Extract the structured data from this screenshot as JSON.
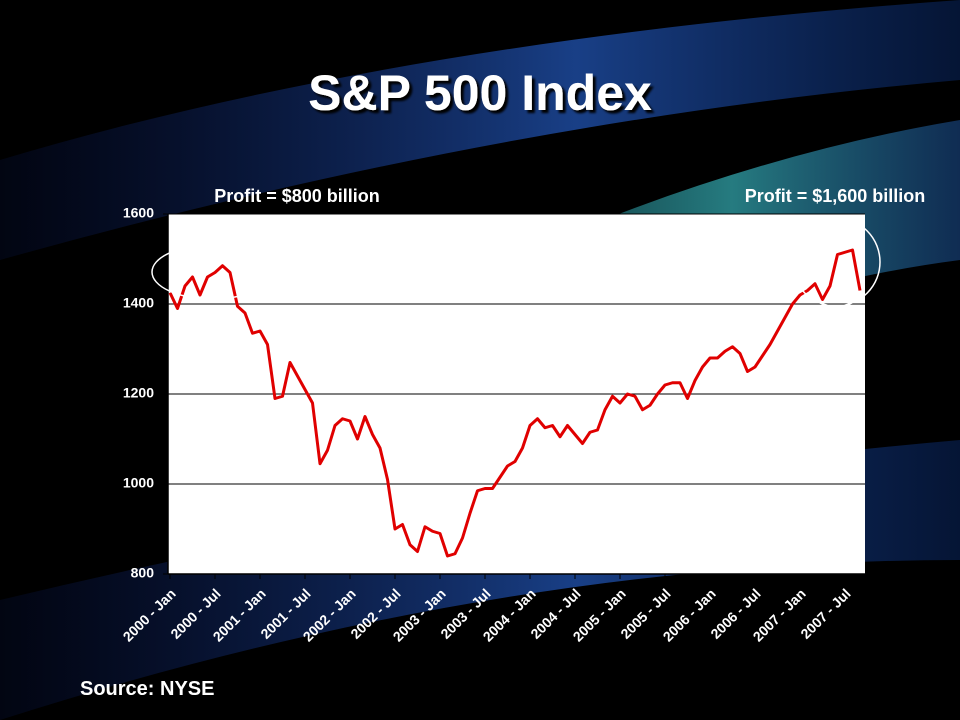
{
  "chart_data": {
    "type": "line",
    "title": "S&P 500 Index",
    "annotations": [
      "Profit = $800 billion",
      "Profit = $1,600 billion"
    ],
    "source": "Source: NYSE",
    "categories": [
      "2000 - Jan",
      null,
      null,
      null,
      null,
      null,
      "2000 - Jul",
      null,
      null,
      null,
      null,
      null,
      "2001 - Jan",
      null,
      null,
      null,
      null,
      null,
      "2001 - Jul",
      null,
      null,
      null,
      null,
      null,
      "2002 - Jan",
      null,
      null,
      null,
      null,
      null,
      "2002 - Jul",
      null,
      null,
      null,
      null,
      null,
      "2003 - Jan",
      null,
      null,
      null,
      null,
      null,
      "2003 - Jul",
      null,
      null,
      null,
      null,
      null,
      "2004 - Jan",
      null,
      null,
      null,
      null,
      null,
      "2004 - Jul",
      null,
      null,
      null,
      null,
      null,
      "2005 - Jan",
      null,
      null,
      null,
      null,
      null,
      "2005 - Jul",
      null,
      null,
      null,
      null,
      null,
      "2006 - Jan",
      null,
      null,
      null,
      null,
      null,
      "2006 - Jul",
      null,
      null,
      null,
      null,
      null,
      "2007 - Jan",
      null,
      null,
      null,
      null,
      null,
      "2007 - Jul",
      null,
      null
    ],
    "values": [
      1425,
      1390,
      1440,
      1460,
      1420,
      1460,
      1470,
      1485,
      1470,
      1395,
      1380,
      1335,
      1340,
      1310,
      1190,
      1195,
      1270,
      1240,
      1210,
      1180,
      1045,
      1075,
      1130,
      1145,
      1140,
      1100,
      1150,
      1110,
      1080,
      1010,
      900,
      910,
      865,
      850,
      905,
      895,
      890,
      840,
      845,
      880,
      935,
      985,
      990,
      990,
      1015,
      1040,
      1050,
      1080,
      1130,
      1145,
      1125,
      1130,
      1105,
      1130,
      1110,
      1090,
      1115,
      1120,
      1165,
      1195,
      1180,
      1200,
      1195,
      1165,
      1175,
      1200,
      1220,
      1225,
      1225,
      1190,
      1230,
      1260,
      1280,
      1280,
      1295,
      1305,
      1290,
      1250,
      1260,
      1285,
      1310,
      1340,
      1370,
      1400,
      1420,
      1430,
      1445,
      1410,
      1440,
      1510,
      1515,
      1520,
      1430
    ],
    "color": "#e00000",
    "ylim": [
      800,
      1600
    ],
    "yticks": [
      800,
      1000,
      1200,
      1400,
      1600
    ],
    "grid": true
  }
}
